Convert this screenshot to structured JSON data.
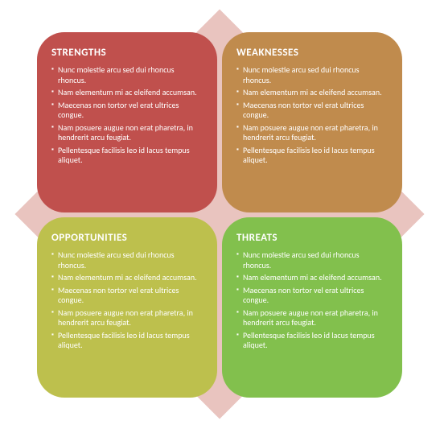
{
  "diagram": {
    "type": "infographic",
    "layout": "swot-2x2",
    "background_color": "#ffffff",
    "diamond_color": "#e9c4bf",
    "title_fontsize": 13,
    "body_fontsize": 10,
    "quad_border_radius": 34,
    "text_color": "#ffffff",
    "quads": [
      {
        "key": "strengths",
        "title": "STRENGTHS",
        "fill": "#c0504d",
        "items": [
          "Nunc molestie arcu sed dui rhoncus rhoncus.",
          "Nam elementum mi ac eleifend accumsan.",
          "Maecenas non tortor vel erat ultrices congue.",
          "Nam posuere augue non erat pharetra, in hendrerit arcu feugiat.",
          "Pellentesque facilisis leo id lacus tempus aliquet."
        ]
      },
      {
        "key": "weaknesses",
        "title": "WEAKNESSES",
        "fill": "#c08b4d",
        "items": [
          "Nunc molestie arcu sed dui rhoncus rhoncus.",
          "Nam elementum mi ac eleifend accumsan.",
          "Maecenas non tortor vel erat ultrices congue.",
          "Nam posuere augue non erat pharetra, in hendrerit arcu feugiat.",
          "Pellentesque facilisis leo id lacus tempus aliquet."
        ]
      },
      {
        "key": "opportunities",
        "title": "OPPORTUNITIES",
        "fill": "#bdc04d",
        "items": [
          "Nunc molestie arcu sed dui rhoncus rhoncus.",
          "Nam elementum mi ac eleifend accumsan.",
          "Maecenas non tortor vel erat ultrices congue.",
          "Nam posuere augue non erat pharetra, in hendrerit arcu feugiat.",
          "Pellentesque facilisis leo id lacus tempus aliquet."
        ]
      },
      {
        "key": "threats",
        "title": "THREATS",
        "fill": "#82c04d",
        "items": [
          "Nunc molestie arcu sed dui rhoncus rhoncus.",
          "Nam elementum mi ac eleifend accumsan.",
          "Maecenas non tortor vel erat ultrices congue.",
          "Nam posuere augue non erat pharetra, in hendrerit arcu feugiat.",
          "Pellentesque facilisis leo id lacus tempus aliquet."
        ]
      }
    ]
  }
}
